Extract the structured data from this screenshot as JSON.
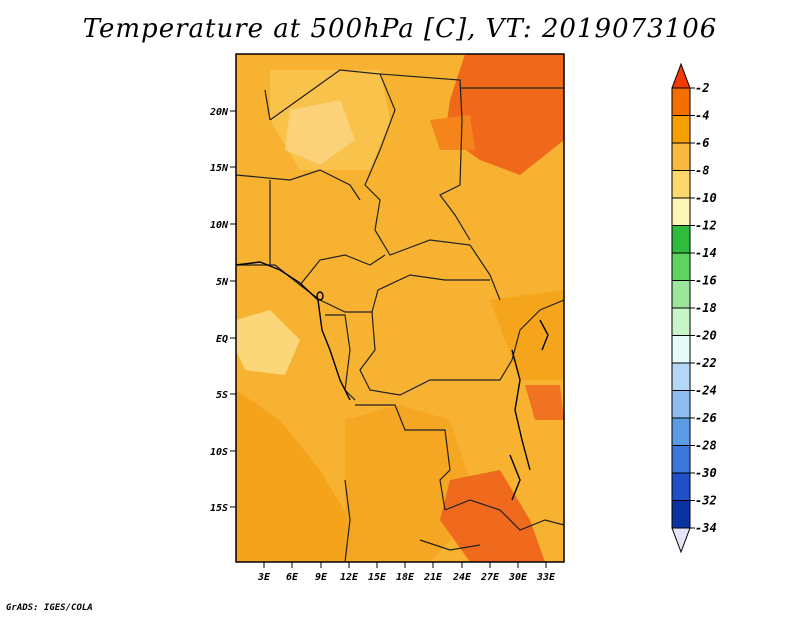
{
  "title": "Temperature at 500hPa [C], VT: 2019073106",
  "credit": "GrADS: IGES/COLA",
  "map": {
    "lat_ticks": [
      "20N",
      "15N",
      "10N",
      "5N",
      "EQ",
      "5S",
      "10S",
      "15S"
    ],
    "lon_ticks": [
      "3E",
      "6E",
      "9E",
      "12E",
      "15E",
      "18E",
      "21E",
      "24E",
      "27E",
      "30E",
      "33E"
    ]
  },
  "colorbar": {
    "labels": [
      "-2",
      "-4",
      "-6",
      "-8",
      "-10",
      "-12",
      "-14",
      "-16",
      "-18",
      "-20",
      "-22",
      "-24",
      "-26",
      "-28",
      "-30",
      "-32",
      "-34"
    ],
    "colors": [
      "#f03c00",
      "#f56e00",
      "#f5a000",
      "#f9b93c",
      "#fbd76e",
      "#fdf5b4",
      "#2fbb3c",
      "#5fd35f",
      "#9ce69c",
      "#c8f5c8",
      "#e6fafa",
      "#b4d7f5",
      "#8cbcf0",
      "#5a9be6",
      "#3c78dc",
      "#1e50c8",
      "#0a32a0",
      "#14147a",
      "#e6e6fa"
    ]
  }
}
